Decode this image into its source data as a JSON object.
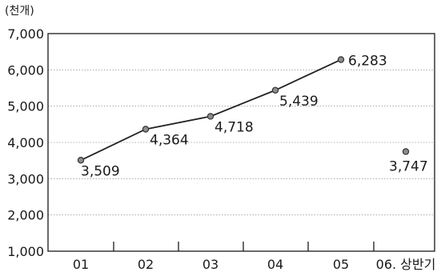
{
  "chart_data": {
    "type": "line",
    "unit_label": "(천개)",
    "categories": [
      "01",
      "02",
      "03",
      "04",
      "05",
      "06. 상반기"
    ],
    "series": [
      {
        "values": [
          3509,
          4364,
          4718,
          5439,
          6283,
          null
        ]
      }
    ],
    "separate_points": [
      {
        "category": "06. 상반기",
        "value": 3747
      }
    ],
    "data_labels": [
      "3,509",
      "4,364",
      "4,718",
      "5,439",
      "6,283",
      "3,747"
    ],
    "ylim": [
      1000,
      7000
    ],
    "yticks": [
      1000,
      2000,
      3000,
      4000,
      5000,
      6000,
      7000
    ],
    "ytick_labels": [
      "1,000",
      "2,000",
      "3,000",
      "4,000",
      "5,000",
      "6,000",
      "7,000"
    ],
    "grid": true,
    "legend": "none"
  }
}
